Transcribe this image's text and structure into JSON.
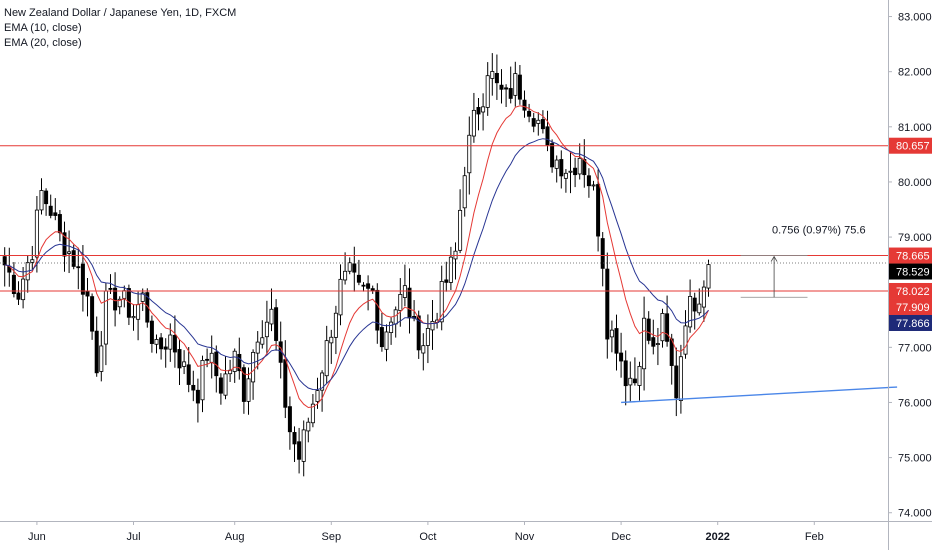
{
  "legend": {
    "title": "New Zealand Dollar / Japanese Yen, 1D, FXCM",
    "ema10": "EMA (10, close)",
    "ema20": "EMA (20, close)"
  },
  "measure_label": "0.756 (0.97%) 75.6",
  "colors": {
    "up_body": "#ffffff",
    "down_body": "#000000",
    "wick": "#000000",
    "ema10": "#e53935",
    "ema20": "#283593",
    "hline": "#e53935",
    "trendline": "#4a86e8",
    "current_badge": "#000000",
    "red_badge": "#e53935",
    "navy_badge": "#1e2a78"
  },
  "chart_data": {
    "type": "candlestick",
    "symbol": "NZDJPY",
    "timeframe": "1D",
    "ylim": [
      73.85,
      83.3
    ],
    "y_ticks": [
      "83.000",
      "82.000",
      "81.000",
      "80.000",
      "79.000",
      "78.000",
      "77.000",
      "76.000",
      "75.000",
      "74.000"
    ],
    "x_ticks": [
      {
        "label": "Jun",
        "bar": 7
      },
      {
        "label": "Jul",
        "bar": 28
      },
      {
        "label": "Aug",
        "bar": 50
      },
      {
        "label": "Sep",
        "bar": 71
      },
      {
        "label": "Oct",
        "bar": 92
      },
      {
        "label": "Nov",
        "bar": 113
      },
      {
        "label": "Dec",
        "bar": 134
      },
      {
        "label": "2022",
        "bar": 155
      },
      {
        "label": "Feb",
        "bar": 176
      }
    ],
    "close_anchors": [
      [
        0,
        78.5
      ],
      [
        3,
        78.0
      ],
      [
        6,
        78.8
      ],
      [
        8,
        79.8
      ],
      [
        10,
        79.5
      ],
      [
        12,
        79.0
      ],
      [
        15,
        78.6
      ],
      [
        18,
        77.9
      ],
      [
        20,
        76.7
      ],
      [
        22,
        77.8
      ],
      [
        25,
        77.9
      ],
      [
        28,
        77.6
      ],
      [
        30,
        77.9
      ],
      [
        33,
        76.9
      ],
      [
        36,
        77.2
      ],
      [
        40,
        76.4
      ],
      [
        42,
        76.2
      ],
      [
        44,
        76.9
      ],
      [
        47,
        76.3
      ],
      [
        50,
        76.8
      ],
      [
        52,
        76.2
      ],
      [
        55,
        77.3
      ],
      [
        58,
        77.6
      ],
      [
        60,
        76.5
      ],
      [
        62,
        75.5
      ],
      [
        64,
        75.0
      ],
      [
        67,
        76.0
      ],
      [
        70,
        77.0
      ],
      [
        73,
        78.1
      ],
      [
        75,
        78.3
      ],
      [
        77,
        78.0
      ],
      [
        80,
        78.0
      ],
      [
        82,
        77.1
      ],
      [
        84,
        77.6
      ],
      [
        87,
        78.0
      ],
      [
        89,
        77.3
      ],
      [
        91,
        77.1
      ],
      [
        94,
        77.7
      ],
      [
        96,
        78.2
      ],
      [
        98,
        78.7
      ],
      [
        100,
        80.3
      ],
      [
        102,
        81.1
      ],
      [
        104,
        81.6
      ],
      [
        105,
        82.1
      ],
      [
        107,
        81.7
      ],
      [
        109,
        81.5
      ],
      [
        111,
        81.8
      ],
      [
        114,
        81.4
      ],
      [
        116,
        81.1
      ],
      [
        118,
        80.5
      ],
      [
        120,
        80.4
      ],
      [
        123,
        80.2
      ],
      [
        125,
        80.5
      ],
      [
        128,
        79.8
      ],
      [
        130,
        78.6
      ],
      [
        131,
        77.4
      ],
      [
        133,
        77.1
      ],
      [
        135,
        76.5
      ],
      [
        137,
        76.4
      ],
      [
        139,
        77.4
      ],
      [
        141,
        76.9
      ],
      [
        143,
        77.4
      ],
      [
        145,
        76.6
      ],
      [
        146,
        76.2
      ],
      [
        148,
        77.6
      ],
      [
        151,
        78.0
      ],
      [
        153,
        78.5
      ]
    ],
    "ema_periods": [
      10,
      20
    ],
    "horizontal_lines": [
      {
        "value": 80.657,
        "label": "80.657"
      },
      {
        "value": 78.665,
        "label": "78.665"
      },
      {
        "value": 78.022,
        "label": "78.022"
      }
    ],
    "trendline": {
      "from": {
        "bar": 134,
        "value": 76.0
      },
      "to": {
        "bar": 194,
        "value": 76.28
      }
    },
    "measure": {
      "from_bar": 160,
      "to_bar": 168,
      "from_value": 77.909,
      "to_value": 78.665
    },
    "price_badges": [
      {
        "value": 80.657,
        "label": "80.657",
        "style": "red"
      },
      {
        "value": 78.665,
        "label": "78.665",
        "style": "red"
      },
      {
        "value": 78.529,
        "label": "78.529",
        "style": "current"
      },
      {
        "value": 78.022,
        "label": "78.022",
        "style": "red"
      },
      {
        "value": 77.909,
        "label": "77.909",
        "style": "red"
      },
      {
        "value": 77.866,
        "label": "77.866",
        "style": "navy"
      }
    ]
  }
}
